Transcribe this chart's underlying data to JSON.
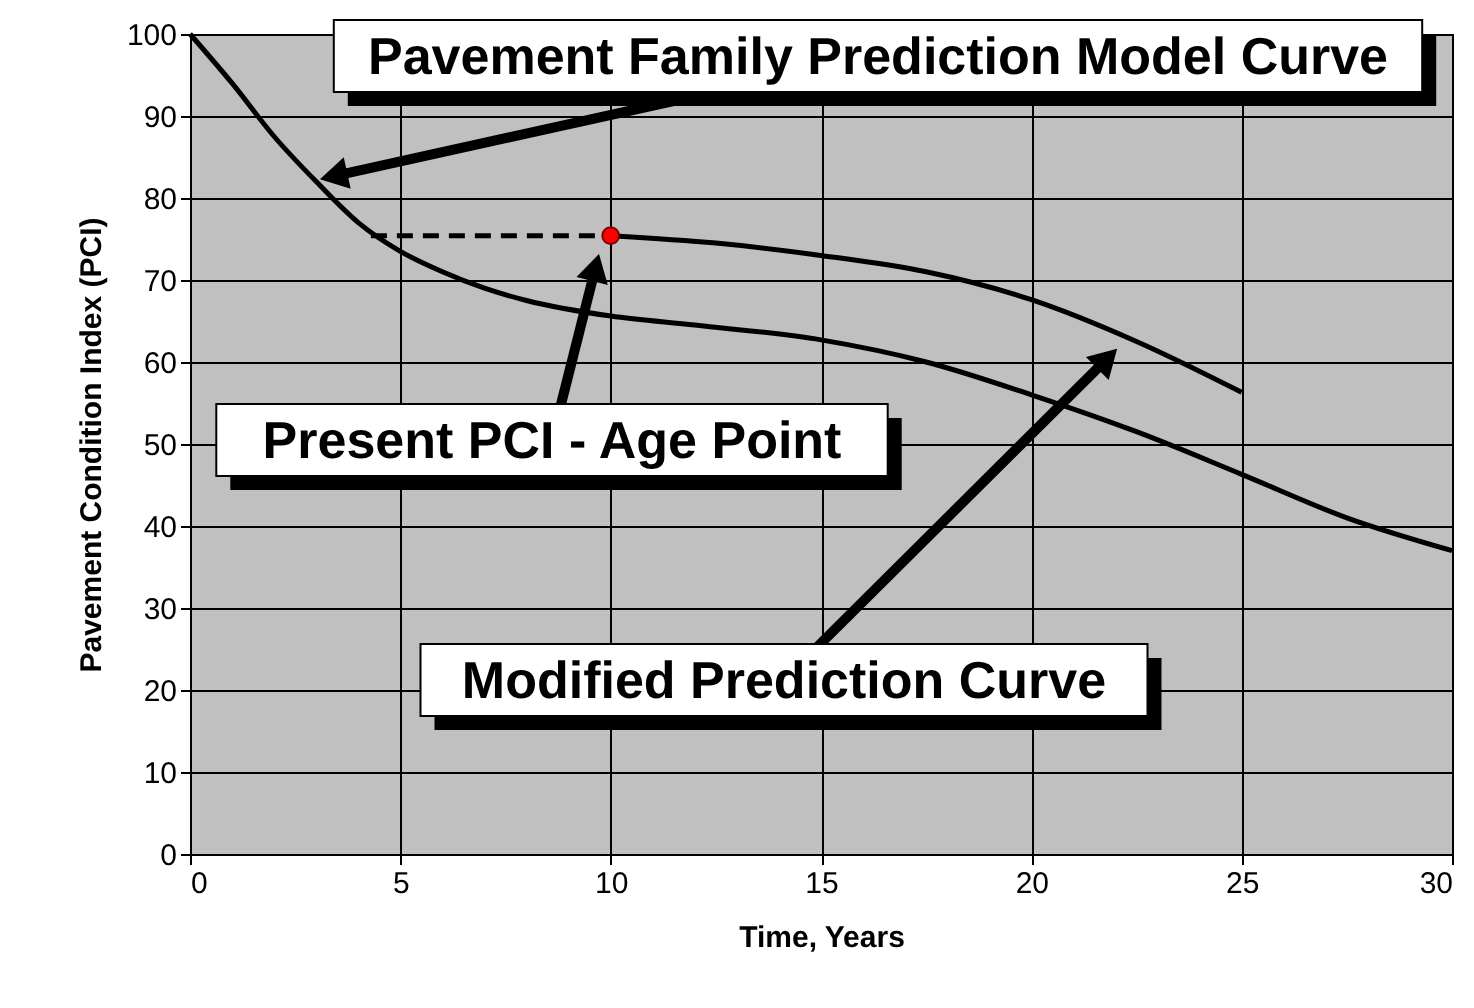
{
  "chart_data": {
    "type": "line",
    "xlabel": "Time, Years",
    "ylabel": "Pavement Condition Index (PCI)",
    "xlim": [
      0,
      30
    ],
    "ylim": [
      0,
      100
    ],
    "xticks": [
      0,
      5,
      10,
      15,
      20,
      25,
      30
    ],
    "yticks": [
      0,
      10,
      20,
      30,
      40,
      50,
      60,
      70,
      80,
      90,
      100
    ],
    "grid": true,
    "series": [
      {
        "color": "#000000",
        "x": [
          0,
          1,
          2,
          3,
          4,
          5,
          6,
          7,
          8,
          10,
          12,
          15,
          17.5,
          20,
          22.5,
          25,
          27.5,
          30
        ],
        "values": [
          100,
          94,
          87.5,
          82,
          77,
          73.5,
          71,
          69,
          67.5,
          65.6,
          64.5,
          62.7,
          60,
          56,
          51.5,
          46.3,
          41,
          37
        ]
      },
      {
        "color": "#000000",
        "x": [
          10,
          12.5,
          15,
          17.5,
          20,
          22.5,
          25
        ],
        "values": [
          75.4,
          74.5,
          73,
          71,
          67.6,
          62.5,
          56.3
        ]
      },
      {
        "color": "#000000",
        "line_style": "dashed",
        "x": [
          4.3,
          10
        ],
        "values": [
          75.4,
          75.4
        ]
      },
      {
        "type": "scatter",
        "color": "#ff0000",
        "marker": "circle",
        "x": [
          10
        ],
        "values": [
          75.4
        ]
      }
    ],
    "annotations": [
      "Pavement Family Prediction Model Curve",
      "Present PCI - Age Point",
      "Modified Prediction Curve"
    ]
  }
}
